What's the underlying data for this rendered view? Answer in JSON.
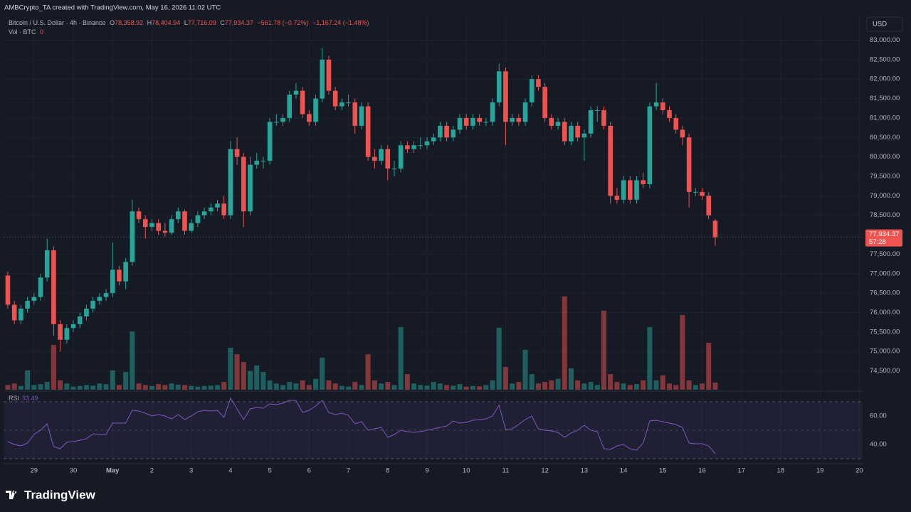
{
  "header": {
    "attribution": "AMBCrypto_TA created with TradingView.com, May 16, 2026 11:02 UTC",
    "symbol": "Bitcoin / U.S. Dollar · 4h · Binance",
    "ohlc_legend": [
      {
        "key": "O",
        "value": "78,358.92"
      },
      {
        "key": "H",
        "value": "78,404.94"
      },
      {
        "key": "L",
        "value": "77,716.09"
      },
      {
        "key": "C",
        "value": "77,934.37"
      }
    ],
    "change": "−561.78 (−0.72%)",
    "change_day": "−1,167.24 (−1.48%)",
    "volume_label": "Vol · BTC",
    "volume_value": "0",
    "currency": "USD",
    "last_price": "77,934.37",
    "countdown": "57:28",
    "logo": "TradingView"
  },
  "chart_data": {
    "type": "candlestick",
    "grid": true,
    "up_color": "#26a69a",
    "down_color": "#ef5350",
    "ohlc": [
      [
        76950,
        77050,
        76100,
        76200
      ],
      [
        76200,
        76300,
        75700,
        75800
      ],
      [
        75800,
        76200,
        75700,
        76100
      ],
      [
        76100,
        76400,
        76000,
        76300
      ],
      [
        76300,
        76500,
        76200,
        76400
      ],
      [
        76400,
        77000,
        76300,
        76900
      ],
      [
        76900,
        77900,
        76800,
        77600
      ],
      [
        77600,
        77700,
        75400,
        75700
      ],
      [
        75700,
        75800,
        75000,
        75300
      ],
      [
        75300,
        75700,
        75200,
        75600
      ],
      [
        75600,
        75800,
        75500,
        75700
      ],
      [
        75700,
        76000,
        75600,
        75900
      ],
      [
        75900,
        76200,
        75800,
        76100
      ],
      [
        76100,
        76400,
        76000,
        76300
      ],
      [
        76300,
        76500,
        76200,
        76400
      ],
      [
        76400,
        76600,
        76300,
        76500
      ],
      [
        76500,
        77800,
        76400,
        77100
      ],
      [
        77100,
        77200,
        76700,
        76800
      ],
      [
        76800,
        77400,
        76600,
        77300
      ],
      [
        77300,
        78900,
        77200,
        78600
      ],
      [
        78600,
        78700,
        78300,
        78400
      ],
      [
        78400,
        78500,
        77900,
        78200
      ],
      [
        78200,
        78400,
        78100,
        78300
      ],
      [
        78300,
        78400,
        78000,
        78100
      ],
      [
        78100,
        78300,
        77950,
        78050
      ],
      [
        78050,
        78500,
        78000,
        78400
      ],
      [
        78400,
        78700,
        78300,
        78600
      ],
      [
        78600,
        78650,
        78000,
        78100
      ],
      [
        78100,
        78400,
        78050,
        78300
      ],
      [
        78300,
        78600,
        78200,
        78500
      ],
      [
        78500,
        78700,
        78400,
        78600
      ],
      [
        78600,
        78800,
        78500,
        78700
      ],
      [
        78700,
        78900,
        78600,
        78800
      ],
      [
        78800,
        79000,
        78400,
        78500
      ],
      [
        78500,
        80400,
        78400,
        80200
      ],
      [
        80200,
        80500,
        79800,
        80000
      ],
      [
        80000,
        80100,
        78200,
        78600
      ],
      [
        78600,
        80000,
        78500,
        79800
      ],
      [
        79800,
        80100,
        79700,
        79900
      ],
      [
        79900,
        80000,
        79700,
        79900
      ],
      [
        79900,
        81000,
        79800,
        80900
      ],
      [
        80900,
        81100,
        80800,
        80900
      ],
      [
        80900,
        81100,
        80800,
        81000
      ],
      [
        81000,
        81700,
        80900,
        81600
      ],
      [
        81600,
        81900,
        81500,
        81700
      ],
      [
        81700,
        81800,
        81000,
        81100
      ],
      [
        81100,
        81200,
        80800,
        80900
      ],
      [
        80900,
        81600,
        80800,
        81500
      ],
      [
        81500,
        82800,
        81400,
        82500
      ],
      [
        82500,
        82600,
        81600,
        81700
      ],
      [
        81700,
        81800,
        81200,
        81300
      ],
      [
        81300,
        81500,
        81200,
        81400
      ],
      [
        81400,
        81600,
        81300,
        81400
      ],
      [
        81400,
        81500,
        80600,
        80800
      ],
      [
        80800,
        81400,
        80700,
        81300
      ],
      [
        81300,
        81400,
        79900,
        80000
      ],
      [
        80000,
        80200,
        79700,
        79900
      ],
      [
        79900,
        80300,
        79800,
        80200
      ],
      [
        80200,
        80300,
        79400,
        79700
      ],
      [
        79700,
        79900,
        79500,
        79700
      ],
      [
        79700,
        80400,
        79600,
        80300
      ],
      [
        80300,
        80400,
        80100,
        80200
      ],
      [
        80200,
        80400,
        80100,
        80300
      ],
      [
        80300,
        80500,
        80200,
        80300
      ],
      [
        80300,
        80500,
        80200,
        80400
      ],
      [
        80400,
        80600,
        80300,
        80500
      ],
      [
        80500,
        80900,
        80400,
        80800
      ],
      [
        80800,
        80900,
        80400,
        80500
      ],
      [
        80500,
        80800,
        80400,
        80700
      ],
      [
        80700,
        81100,
        80600,
        81000
      ],
      [
        81000,
        81100,
        80700,
        80800
      ],
      [
        80800,
        81100,
        80700,
        81000
      ],
      [
        81000,
        81100,
        80800,
        80900
      ],
      [
        80900,
        81000,
        80800,
        80900
      ],
      [
        80900,
        81500,
        80800,
        81400
      ],
      [
        81400,
        82400,
        81300,
        82200
      ],
      [
        82200,
        82300,
        80300,
        80900
      ],
      [
        80900,
        81100,
        80800,
        81000
      ],
      [
        81000,
        81100,
        80800,
        80900
      ],
      [
        80900,
        81500,
        80800,
        81400
      ],
      [
        81400,
        82100,
        81300,
        82000
      ],
      [
        82000,
        82100,
        81700,
        81800
      ],
      [
        81800,
        81900,
        80900,
        81000
      ],
      [
        81000,
        81100,
        80700,
        80800
      ],
      [
        80800,
        81000,
        80700,
        80900
      ],
      [
        80900,
        81000,
        80300,
        80400
      ],
      [
        80400,
        80900,
        80300,
        80800
      ],
      [
        80800,
        80900,
        80400,
        80500
      ],
      [
        80500,
        80700,
        79900,
        80600
      ],
      [
        80600,
        81300,
        80500,
        81200
      ],
      [
        81200,
        81300,
        80900,
        81200
      ],
      [
        81200,
        81300,
        80700,
        80800
      ],
      [
        80800,
        80900,
        78800,
        79000
      ],
      [
        79000,
        79200,
        78800,
        78900
      ],
      [
        78900,
        79500,
        78800,
        79400
      ],
      [
        79400,
        79500,
        78800,
        78900
      ],
      [
        78900,
        79500,
        78800,
        79400
      ],
      [
        79400,
        79600,
        79200,
        79300
      ],
      [
        79300,
        81400,
        79200,
        81300
      ],
      [
        81300,
        81900,
        81200,
        81400
      ],
      [
        81400,
        81500,
        81100,
        81200
      ],
      [
        81200,
        81300,
        80900,
        81000
      ],
      [
        81000,
        81100,
        80600,
        80700
      ],
      [
        80700,
        80800,
        80300,
        80500
      ],
      [
        80500,
        80600,
        78700,
        79100
      ],
      [
        79100,
        79200,
        79000,
        79100
      ],
      [
        79100,
        79200,
        78900,
        79000
      ],
      [
        79000,
        79100,
        78400,
        78496.15
      ],
      [
        78358.92,
        78404.94,
        77716.09,
        77934.37
      ]
    ],
    "volume": [
      150,
      200,
      120,
      620,
      150,
      180,
      250,
      1440,
      300,
      200,
      100,
      120,
      150,
      130,
      200,
      180,
      620,
      150,
      570,
      1870,
      200,
      150,
      120,
      180,
      150,
      200,
      160,
      150,
      120,
      100,
      120,
      130,
      150,
      250,
      1350,
      1140,
      890,
      600,
      780,
      570,
      300,
      200,
      150,
      250,
      200,
      300,
      150,
      350,
      1030,
      300,
      200,
      120,
      100,
      250,
      150,
      1140,
      300,
      200,
      250,
      150,
      2010,
      500,
      200,
      150,
      130,
      250,
      200,
      150,
      130,
      180,
      100,
      120,
      110,
      150,
      300,
      1990,
      730,
      200,
      250,
      1280,
      500,
      200,
      250,
      300,
      350,
      3000,
      690,
      300,
      200,
      250,
      150,
      2540,
      500,
      250,
      200,
      150,
      180,
      300,
      2010,
      300,
      460,
      200,
      150,
      2400,
      300,
      150,
      200,
      1510,
      230
    ],
    "vlim": [
      0,
      3200
    ],
    "ylim": [
      73980,
      83631
    ],
    "yticks": [
      {
        "value": 83000,
        "label": "83,000.00"
      },
      {
        "value": 82500,
        "label": "82,500.00"
      },
      {
        "value": 82000,
        "label": "82,000.00"
      },
      {
        "value": 81500,
        "label": "81,500.00"
      },
      {
        "value": 81000,
        "label": "81,000.00"
      },
      {
        "value": 80500,
        "label": "80,500.00"
      },
      {
        "value": 80000,
        "label": "80,000.00"
      },
      {
        "value": 79500,
        "label": "79,500.00"
      },
      {
        "value": 79000,
        "label": "79,000.00"
      },
      {
        "value": 78500,
        "label": "78,500.00"
      },
      {
        "value": 78000,
        "label": "78,000.00"
      },
      {
        "value": 77500,
        "label": "77,500.00"
      },
      {
        "value": 77000,
        "label": "77,000.00"
      },
      {
        "value": 76500,
        "label": "76,500.00"
      },
      {
        "value": 76000,
        "label": "76,000.00"
      },
      {
        "value": 75500,
        "label": "75,500.00"
      },
      {
        "value": 75000,
        "label": "75,000.00"
      },
      {
        "value": 74500,
        "label": "74,500.00"
      }
    ],
    "xlim": [
      -0.65,
      130.5
    ],
    "xticks": [
      {
        "value": 4,
        "label": "29"
      },
      {
        "value": 10,
        "label": "30"
      },
      {
        "value": 16,
        "label": "May"
      },
      {
        "value": 22,
        "label": "2"
      },
      {
        "value": 28,
        "label": "3"
      },
      {
        "value": 34,
        "label": "4"
      },
      {
        "value": 40,
        "label": "5"
      },
      {
        "value": 46,
        "label": "6"
      },
      {
        "value": 52,
        "label": "7"
      },
      {
        "value": 58,
        "label": "8"
      },
      {
        "value": 64,
        "label": "9"
      },
      {
        "value": 70,
        "label": "10"
      },
      {
        "value": 76,
        "label": "11"
      },
      {
        "value": 82,
        "label": "12"
      },
      {
        "value": 88,
        "label": "13"
      },
      {
        "value": 94,
        "label": "14"
      },
      {
        "value": 100,
        "label": "15"
      },
      {
        "value": 106,
        "label": "16"
      },
      {
        "value": 112,
        "label": "17"
      },
      {
        "value": 118,
        "label": "18"
      },
      {
        "value": 124,
        "label": "19"
      },
      {
        "value": 130,
        "label": "20"
      }
    ],
    "rsi": {
      "label": "RSI",
      "value_label": "33.49",
      "color": "#7e57c2",
      "values": [
        42,
        40,
        39,
        41,
        47,
        50,
        54.5,
        38.5,
        37,
        41.5,
        42,
        43,
        44,
        47.5,
        47,
        47,
        55,
        55,
        55,
        64,
        63.5,
        62,
        60,
        61,
        60,
        58,
        61,
        57.5,
        60,
        63,
        64,
        63.5,
        64,
        59,
        72.5,
        65,
        57.5,
        65,
        66,
        65.5,
        68.5,
        68,
        69,
        71,
        71,
        62.5,
        64,
        67,
        71,
        62.5,
        61,
        62,
        60.5,
        54.5,
        56,
        50,
        51,
        52,
        45,
        47,
        50,
        49,
        48.5,
        49,
        50,
        51,
        52,
        53,
        56.5,
        55,
        55.5,
        57,
        57.5,
        58,
        60,
        67.5,
        50.5,
        51,
        54,
        57.5,
        60,
        51,
        50,
        49.5,
        48.5,
        45,
        48,
        50,
        53.5,
        50,
        49,
        37,
        36.5,
        39,
        40,
        37,
        36,
        41,
        56.5,
        57,
        56,
        55,
        54,
        52,
        41,
        40.5,
        40.5,
        39,
        33.49
      ],
      "ylim": [
        26.5,
        76.5
      ],
      "yticks": [
        {
          "value": 60,
          "label": "60.00"
        },
        {
          "value": 40,
          "label": "40.00"
        }
      ],
      "levels": [
        30,
        50,
        70
      ]
    }
  }
}
